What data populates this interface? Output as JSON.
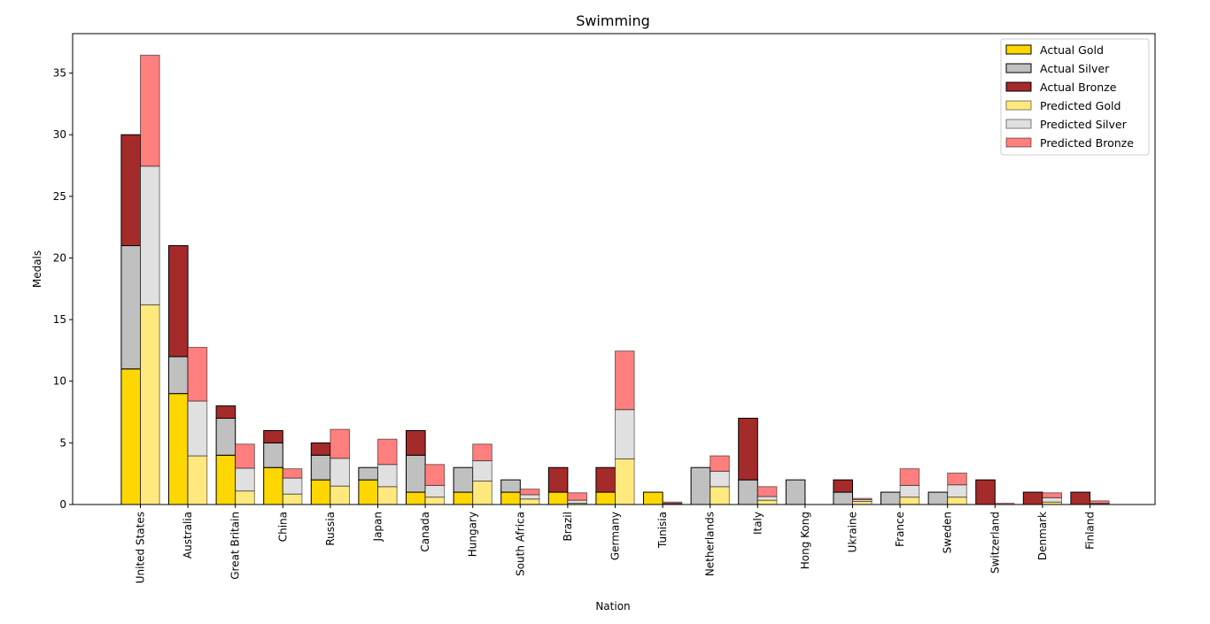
{
  "chart_data": {
    "type": "bar",
    "title": "Swimming",
    "xlabel": "Nation",
    "ylabel": "Medals",
    "ylim": [
      0,
      38.2
    ],
    "yticks": [
      0,
      5,
      10,
      15,
      20,
      25,
      30,
      35
    ],
    "grid": false,
    "legend_position": "top-right",
    "categories": [
      "United States",
      "Australia",
      "Great Britain",
      "China",
      "Russia",
      "Japan",
      "Canada",
      "Hungary",
      "South Africa",
      "Brazil",
      "Germany",
      "Tunisia",
      "Netherlands",
      "Italy",
      "Hong Kong",
      "Ukraine",
      "France",
      "Sweden",
      "Switzerland",
      "Denmark",
      "Finland"
    ],
    "groups": [
      {
        "name": "Actual",
        "series": [
          {
            "name": "Actual Gold",
            "color": "#ffd700",
            "values": [
              11,
              9,
              4,
              3,
              2,
              2,
              1,
              1,
              1,
              1,
              1,
              1,
              0,
              0,
              0,
              0,
              0,
              0,
              0,
              0,
              0
            ]
          },
          {
            "name": "Actual Silver",
            "color": "#c0c0c0",
            "values": [
              10,
              3,
              3,
              2,
              2,
              1,
              3,
              2,
              1,
              0,
              0,
              0,
              3,
              2,
              2,
              1,
              1,
              1,
              0,
              0,
              0
            ]
          },
          {
            "name": "Actual Bronze",
            "color": "#a52a2a",
            "values": [
              9,
              9,
              1,
              1,
              1,
              0,
              2,
              0,
              0,
              2,
              2,
              0,
              0,
              5,
              0,
              1,
              0,
              0,
              2,
              1,
              1
            ]
          }
        ]
      },
      {
        "name": "Predicted",
        "series": [
          {
            "name": "Predicted Gold",
            "color": "#ffe97f",
            "values": [
              16.2,
              3.95,
              1.1,
              0.85,
              1.5,
              1.45,
              0.6,
              1.9,
              0.45,
              0.1,
              3.7,
              0.05,
              1.45,
              0.35,
              0,
              0.25,
              0.6,
              0.6,
              0,
              0.2,
              0.05
            ]
          },
          {
            "name": "Predicted Silver",
            "color": "#e0e0e0",
            "values": [
              11.25,
              4.45,
              1.85,
              1.3,
              2.25,
              1.8,
              0.95,
              1.65,
              0.35,
              0.25,
              4.0,
              0.05,
              1.25,
              0.3,
              0,
              0.15,
              0.95,
              1.0,
              0,
              0.35,
              0.05
            ]
          },
          {
            "name": "Predicted Bronze",
            "color": "#ff7f7f",
            "values": [
              9.0,
              4.35,
              1.95,
              0.75,
              2.35,
              2.05,
              1.7,
              1.35,
              0.45,
              0.6,
              4.75,
              0.1,
              1.25,
              0.8,
              0,
              0.1,
              1.35,
              0.95,
              0.1,
              0.4,
              0.2
            ]
          }
        ]
      }
    ]
  }
}
